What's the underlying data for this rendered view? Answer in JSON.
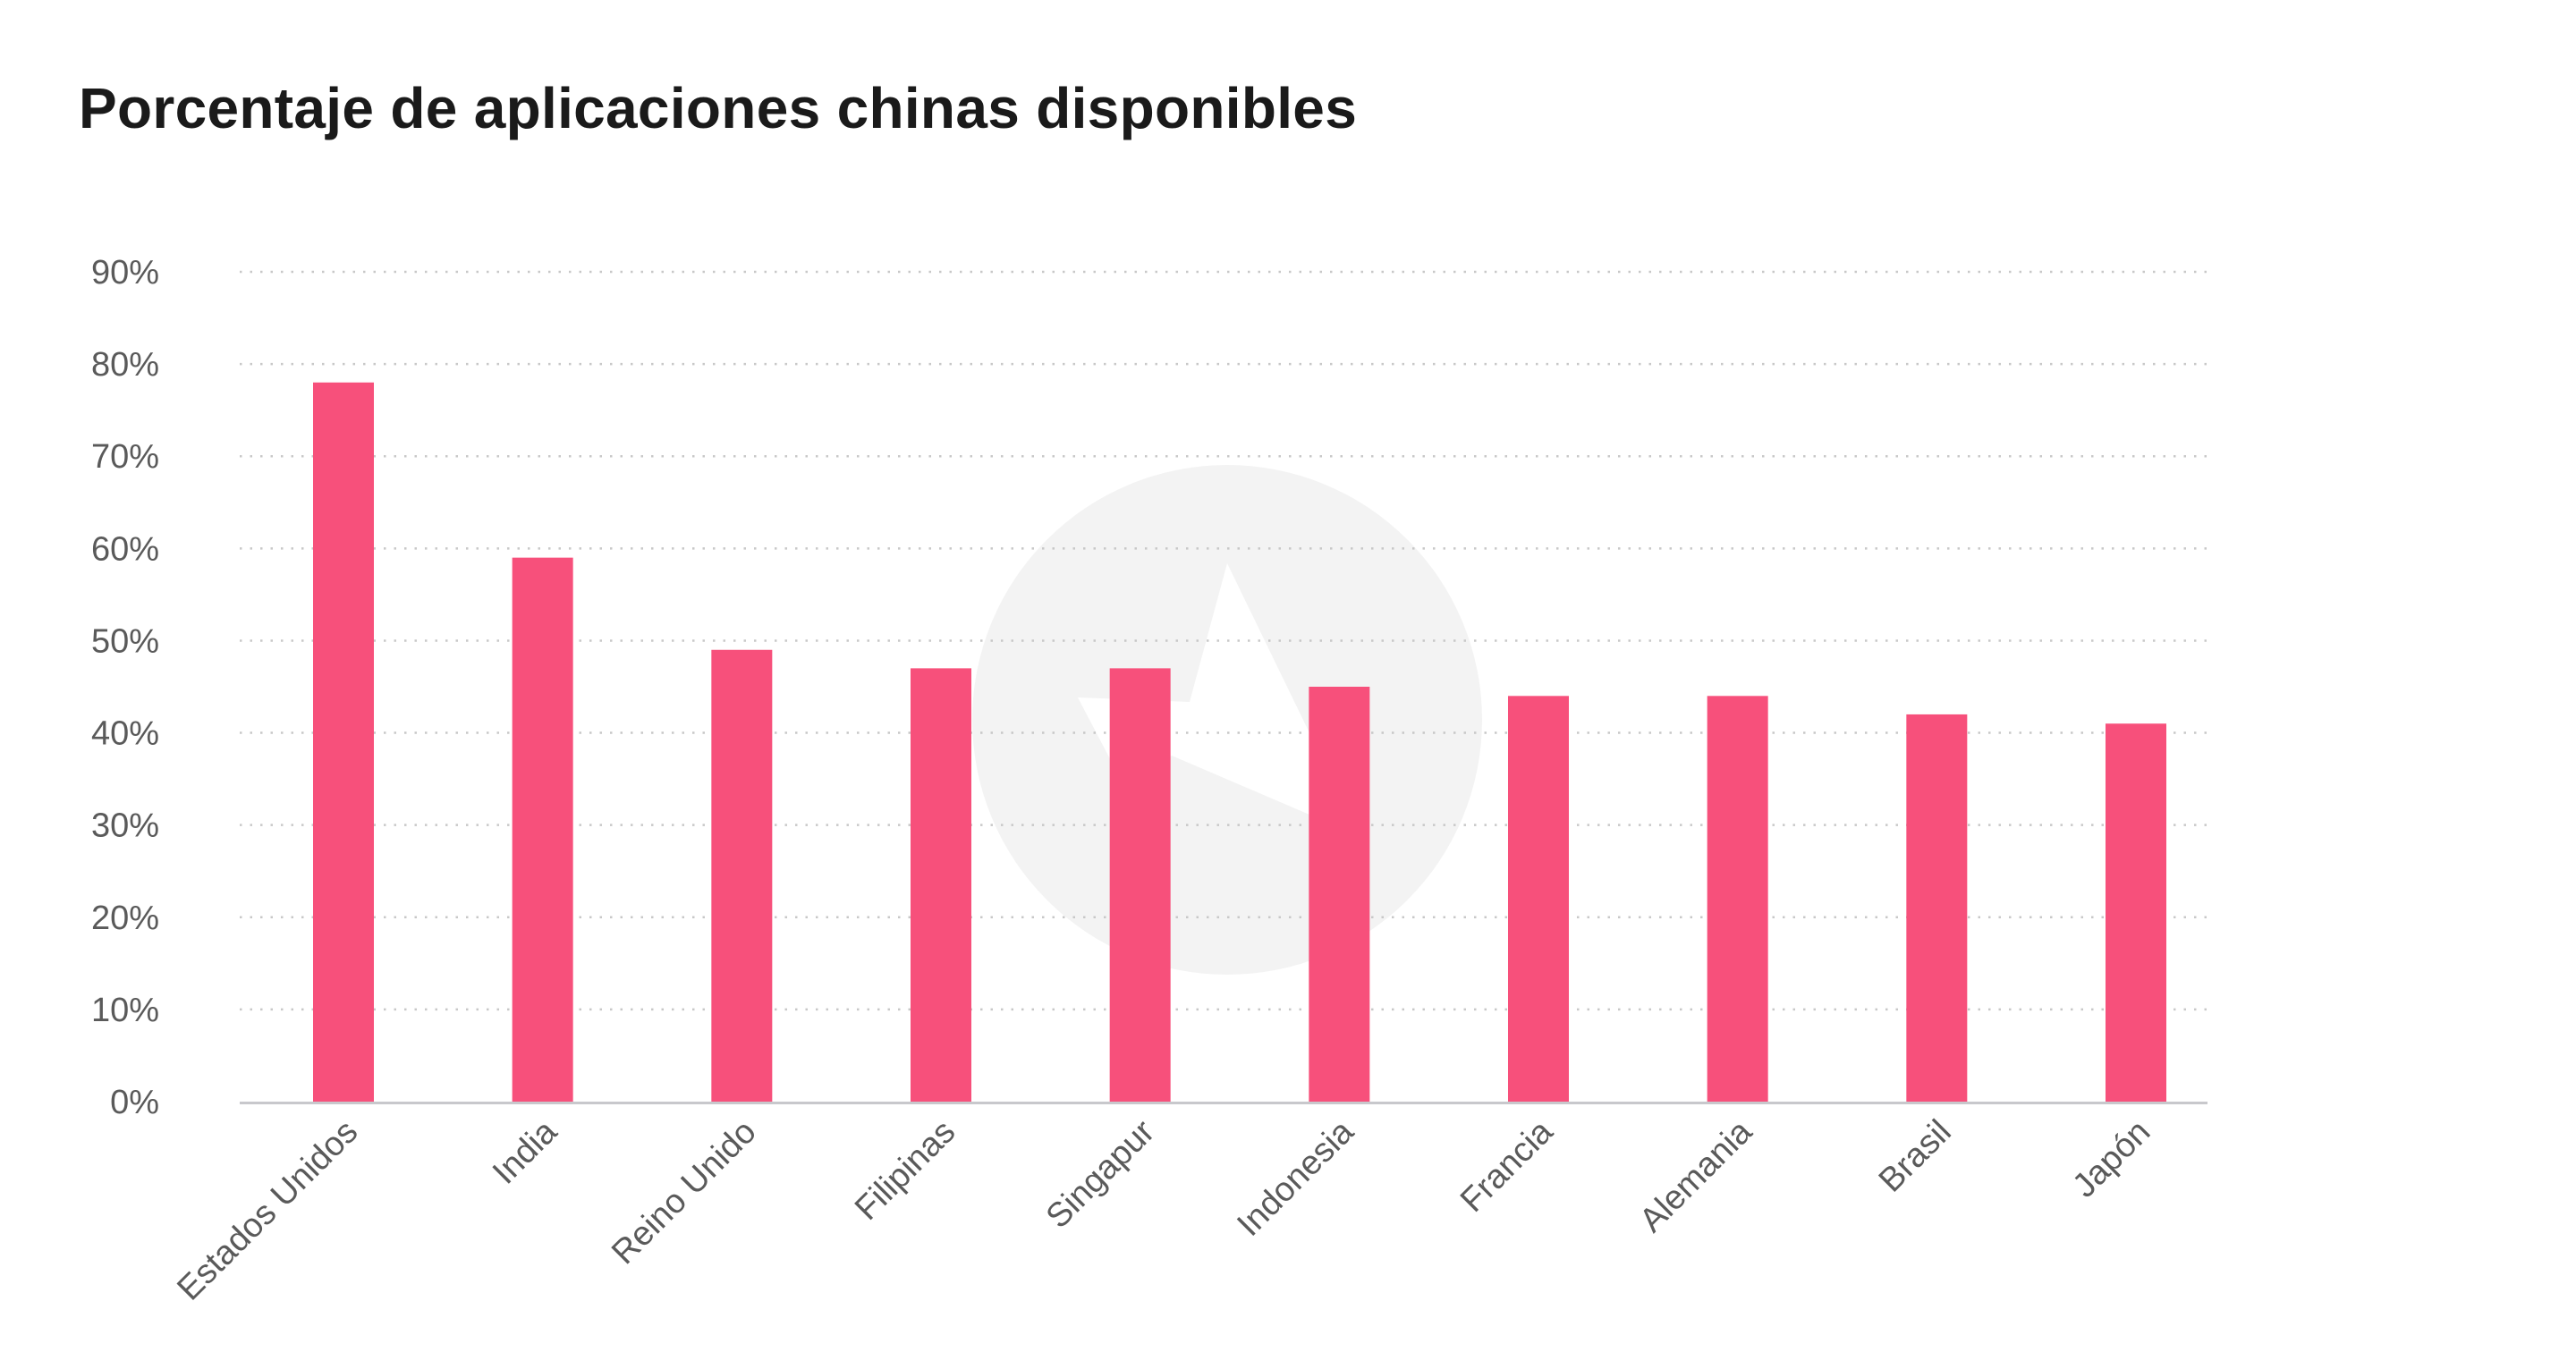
{
  "chart_data": {
    "type": "bar",
    "title": "Porcentaje de aplicaciones chinas disponibles",
    "xlabel": "",
    "ylabel": "",
    "categories": [
      "Estados Unidos",
      "India",
      "Reino Unido",
      "Filipinas",
      "Singapur",
      "Indonesia",
      "Francia",
      "Alemania",
      "Brasil",
      "Japón"
    ],
    "values": [
      78,
      59,
      49,
      47,
      47,
      45,
      44,
      44,
      42,
      41
    ],
    "ylim": [
      0,
      90
    ],
    "yticks": [
      "0%",
      "10%",
      "20%",
      "30%",
      "40%",
      "50%",
      "60%",
      "70%",
      "80%",
      "90%"
    ],
    "grid": true,
    "legend": "none",
    "colors": {
      "bar": "#f7507b",
      "grid": "#c8c8c8",
      "axis": "#c8c8cc",
      "text": "#5a5a5a",
      "watermark": "#f3f3f3"
    },
    "watermark_icon": "app-logo-icon"
  }
}
